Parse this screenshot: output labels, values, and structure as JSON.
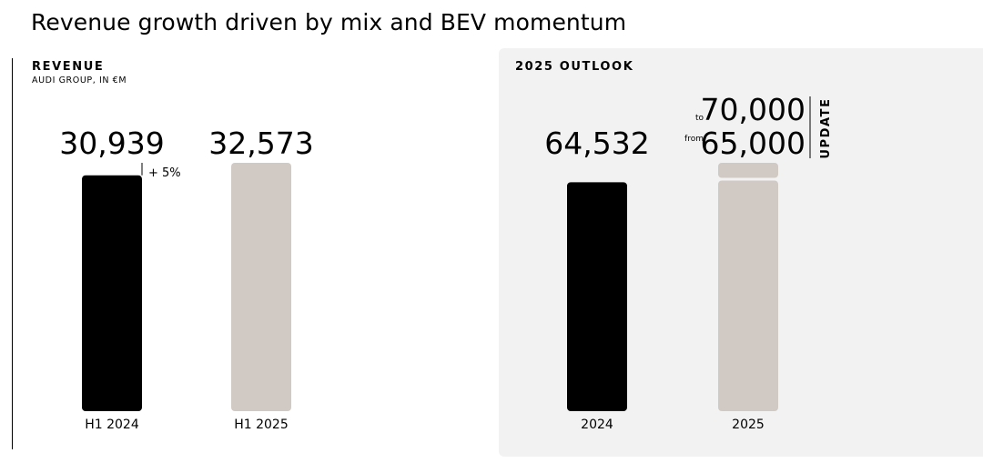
{
  "page": {
    "title": "Revenue growth driven by mix and BEV momentum"
  },
  "revenue": {
    "title": "REVENUE",
    "subtitle": "AUDI GROUP, IN €M"
  },
  "outlook": {
    "title": "2025 OUTLOOK"
  },
  "colors": {
    "prior_period": "#000000",
    "current_period": "#d1c9c4",
    "panel_background": "#f2f2f2"
  },
  "chart_data": [
    {
      "type": "bar",
      "title": "REVENUE",
      "subtitle": "AUDI GROUP, IN €M",
      "categories": [
        "H1 2024",
        "H1 2025"
      ],
      "values": [
        30939,
        32573
      ],
      "value_labels": [
        "30,939",
        "32,573"
      ],
      "bar_colors": [
        "#000000",
        "#d1c9c4"
      ],
      "annotations": [
        {
          "text": "+ 5%",
          "category": "H1 2024"
        }
      ],
      "ylim": [
        0,
        32573
      ],
      "grid": false
    },
    {
      "type": "bar",
      "title": "2025 OUTLOOK",
      "categories": [
        "2024",
        "2025"
      ],
      "values": [
        64532,
        65000
      ],
      "value_labels": [
        "64,532",
        "65,000"
      ],
      "bar_colors": [
        "#000000",
        "#d1c9c4"
      ],
      "range": {
        "category": "2025",
        "from": 65000,
        "to": 70000,
        "from_prefix": "from",
        "to_prefix": "to",
        "from_label": "65,000",
        "to_label": "70,000"
      },
      "annotations": [
        {
          "text": "UPDATE",
          "category": "2025"
        }
      ],
      "ylim": [
        0,
        70000
      ],
      "grid": false
    }
  ]
}
